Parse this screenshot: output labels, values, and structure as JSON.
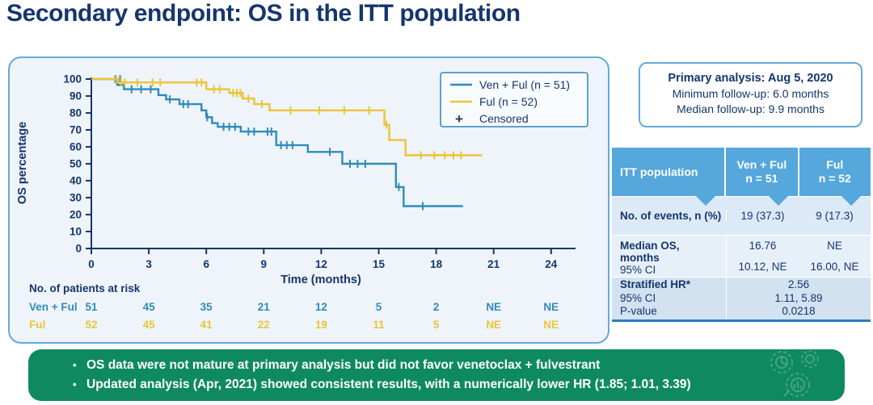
{
  "slide": {
    "title": "Secondary endpoint: OS in the ITT population"
  },
  "colors": {
    "navy": "#15356e",
    "ven_ful_blue": "#2f8cba",
    "ful_yellow": "#ecc437",
    "panel_border": "#64aadc",
    "table_header_blue": "#55a7dc",
    "banner_green": "#0f8a60"
  },
  "chart_data": {
    "type": "line",
    "subtype": "kaplan-meier-step",
    "xlabel": "Time (months)",
    "ylabel": "OS percentage",
    "xlim": [
      0,
      24
    ],
    "x_ticks": [
      0,
      3,
      6,
      9,
      12,
      15,
      18,
      21,
      24
    ],
    "ylim": [
      0,
      100
    ],
    "y_ticks": [
      0,
      10,
      20,
      30,
      40,
      50,
      60,
      70,
      80,
      90,
      100
    ],
    "grid": false,
    "legend_position": "top-right",
    "censored_marker": "+",
    "censored_label": "Censored",
    "series": [
      {
        "name": "Ven + Ful (n = 51)",
        "color": "#2f8cba",
        "steps": [
          [
            0,
            100
          ],
          [
            1.35,
            100
          ],
          [
            1.35,
            96.5
          ],
          [
            1.7,
            96.5
          ],
          [
            1.7,
            94
          ],
          [
            3.5,
            94
          ],
          [
            3.5,
            90.5
          ],
          [
            3.9,
            90.5
          ],
          [
            3.9,
            88
          ],
          [
            4.6,
            88
          ],
          [
            4.6,
            85.2
          ],
          [
            5.75,
            85.2
          ],
          [
            5.75,
            81.5
          ],
          [
            6.0,
            81.5
          ],
          [
            6.0,
            77.5
          ],
          [
            6.3,
            77.5
          ],
          [
            6.3,
            74
          ],
          [
            6.6,
            74
          ],
          [
            6.6,
            71.8
          ],
          [
            7.8,
            71.8
          ],
          [
            7.8,
            69
          ],
          [
            9.65,
            69
          ],
          [
            9.65,
            61
          ],
          [
            11.3,
            61
          ],
          [
            11.3,
            57
          ],
          [
            13.1,
            57
          ],
          [
            13.1,
            50
          ],
          [
            15.9,
            50
          ],
          [
            15.9,
            36.3
          ],
          [
            16.3,
            36.3
          ],
          [
            16.3,
            25
          ],
          [
            19.4,
            25
          ]
        ],
        "censor_marks": [
          [
            1.25,
            100
          ],
          [
            1.5,
            100
          ],
          [
            2.1,
            94
          ],
          [
            2.6,
            94
          ],
          [
            3.1,
            94
          ],
          [
            4.1,
            88
          ],
          [
            4.8,
            85.2
          ],
          [
            5.05,
            85.2
          ],
          [
            6.05,
            77.5
          ],
          [
            6.9,
            71.8
          ],
          [
            7.2,
            71.8
          ],
          [
            7.5,
            71.8
          ],
          [
            8.2,
            69
          ],
          [
            8.5,
            69
          ],
          [
            9.2,
            69
          ],
          [
            9.4,
            69
          ],
          [
            9.9,
            61
          ],
          [
            10.2,
            61
          ],
          [
            10.5,
            61
          ],
          [
            12.45,
            57
          ],
          [
            13.5,
            50
          ],
          [
            13.9,
            50
          ],
          [
            14.3,
            50
          ],
          [
            16.05,
            36.3
          ],
          [
            17.3,
            25
          ]
        ]
      },
      {
        "name": "Ful (n = 52)",
        "color": "#ecc437",
        "steps": [
          [
            0,
            100
          ],
          [
            1.4,
            100
          ],
          [
            1.4,
            98
          ],
          [
            6.0,
            98
          ],
          [
            6.0,
            94
          ],
          [
            7.2,
            94
          ],
          [
            7.2,
            91.8
          ],
          [
            7.9,
            91.8
          ],
          [
            7.9,
            88.5
          ],
          [
            8.5,
            88.5
          ],
          [
            8.5,
            85.2
          ],
          [
            9.3,
            85.2
          ],
          [
            9.3,
            81.5
          ],
          [
            15.3,
            81.5
          ],
          [
            15.3,
            73
          ],
          [
            15.55,
            73
          ],
          [
            15.55,
            64
          ],
          [
            16.4,
            64
          ],
          [
            16.4,
            55
          ],
          [
            20.4,
            55
          ]
        ],
        "censor_marks": [
          [
            1.3,
            100
          ],
          [
            1.55,
            98
          ],
          [
            1.75,
            98
          ],
          [
            2.4,
            98
          ],
          [
            3.2,
            98
          ],
          [
            3.6,
            98
          ],
          [
            5.5,
            98
          ],
          [
            5.75,
            98
          ],
          [
            6.4,
            94
          ],
          [
            6.7,
            94
          ],
          [
            7.4,
            91.8
          ],
          [
            7.6,
            91.8
          ],
          [
            7.78,
            91.8
          ],
          [
            8.2,
            88.5
          ],
          [
            8.9,
            85.2
          ],
          [
            10.4,
            81.5
          ],
          [
            11.9,
            81.5
          ],
          [
            13.2,
            81.5
          ],
          [
            14.5,
            81.5
          ],
          [
            15.4,
            73
          ],
          [
            17.2,
            55
          ],
          [
            17.9,
            55
          ],
          [
            18.45,
            55
          ],
          [
            18.9,
            55
          ],
          [
            19.3,
            55
          ]
        ]
      }
    ],
    "risk_table": {
      "title": "No. of patients at risk",
      "time_points": [
        0,
        3,
        6,
        9,
        12,
        15,
        18,
        21,
        24
      ],
      "rows": [
        {
          "label": "Ven + Ful",
          "color": "#2f8cba",
          "values": [
            "51",
            "45",
            "35",
            "21",
            "12",
            "5",
            "2",
            "NE",
            "NE"
          ]
        },
        {
          "label": "Ful",
          "color": "#ecc437",
          "values": [
            "52",
            "45",
            "41",
            "22",
            "19",
            "11",
            "5",
            "NE",
            "NE"
          ]
        }
      ]
    }
  },
  "info_box": {
    "line1": "Primary analysis: Aug 5, 2020",
    "line2": "Minimum follow-up: 6.0 months",
    "line3": "Median follow-up: 9.9 months"
  },
  "stats_table": {
    "header": {
      "label": "ITT population",
      "col1": "Ven + Ful\nn = 51",
      "col2": "Ful\nn = 52"
    },
    "rows": {
      "events": {
        "label": "No. of events, n (%)",
        "ven": "19 (37.3)",
        "ful": "9 (17.3)"
      },
      "median": {
        "label_main": "Median OS,\nmonths",
        "label_ci": "95% CI",
        "ven_value": "16.76",
        "ven_ci": "10.12, NE",
        "ful_value": "NE",
        "ful_ci": "16.00, NE"
      },
      "hr": {
        "label_main": "Stratified HR*",
        "label_ci": "95% CI",
        "label_p": "P-value",
        "value": "2.56",
        "ci": "1.11, 5.89",
        "pvalue": "0.0218"
      }
    }
  },
  "banner": {
    "bullets": [
      "OS data were not mature at primary analysis but did not favor venetoclax + fulvestrant",
      "Updated analysis (Apr, 2021) showed consistent results, with a numerically lower HR (1.85; 1.01, 3.39)"
    ]
  }
}
